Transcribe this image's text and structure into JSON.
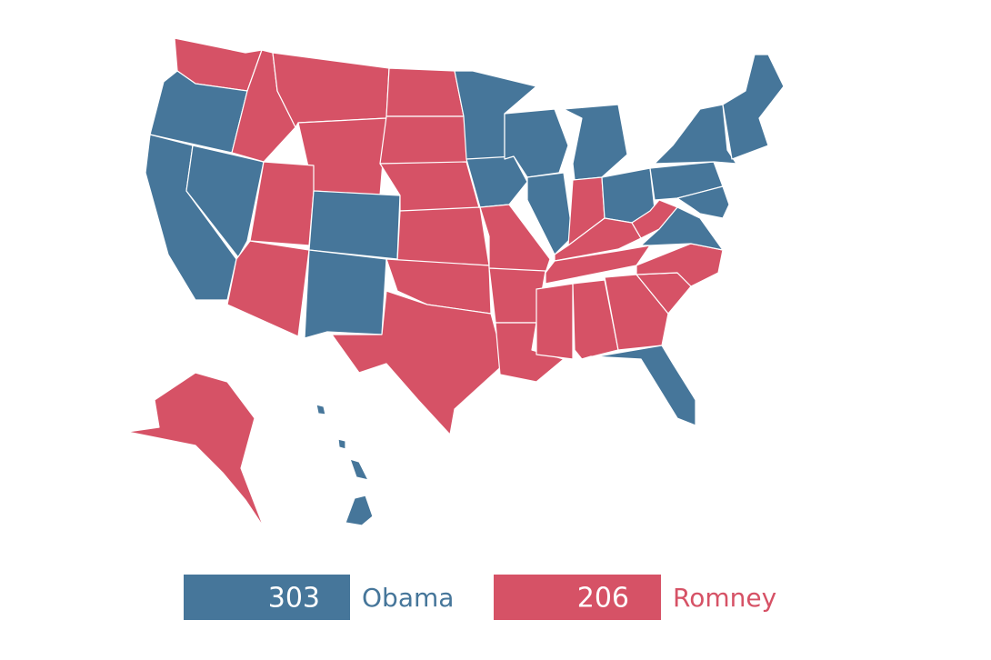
{
  "legend": [
    {
      "name": "Obama",
      "value": 303,
      "color": "#46769a"
    },
    {
      "name": "Romney",
      "value": 206,
      "color": "#d65266"
    }
  ]
}
